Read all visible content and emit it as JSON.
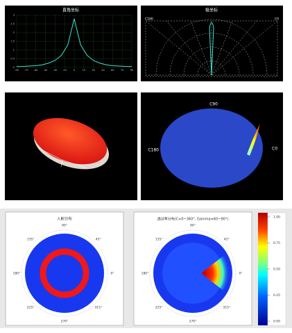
{
  "chart_data": {
    "type": "line",
    "title": "直角坐标",
    "x": [
      -90,
      -80,
      -70,
      -60,
      -50,
      -40,
      -30,
      -20,
      -10,
      0,
      10,
      20,
      30,
      40,
      50,
      60,
      70,
      80,
      90
    ],
    "series": [
      {
        "color": "#40e0d0",
        "values": [
          0.05,
          0.06,
          0.08,
          0.1,
          0.15,
          0.25,
          0.4,
          0.7,
          1.3,
          2.8,
          1.3,
          0.7,
          0.4,
          0.25,
          0.15,
          0.1,
          0.08,
          0.06,
          0.05
        ]
      }
    ],
    "xlim": [
      -90,
      90
    ],
    "xticks": [
      -90,
      -75,
      -60,
      -45,
      -30,
      -15,
      0,
      15,
      30,
      45,
      60,
      75,
      90
    ],
    "ylim": [
      0,
      3
    ],
    "yticks": [
      0,
      0.5,
      1,
      1.5,
      2,
      2.5,
      3
    ],
    "grid": true
  },
  "polar_panel": {
    "title": "极坐标",
    "left_label": "C180",
    "right_label": "C0"
  },
  "ellipse_panel": {
    "top": "C90",
    "left": "C180",
    "right": "C0"
  },
  "incident": {
    "title": "入射分布",
    "angles": [
      "90°",
      "45°",
      "0°",
      "315°",
      "270°",
      "225°",
      "180°",
      "135°"
    ]
  },
  "transmission": {
    "title": "透过率分布(C=0~360°, Gamma=60~90°)",
    "angles": [
      "90°",
      "45°",
      "0°",
      "315°",
      "270°",
      "225°",
      "180°",
      "135°"
    ]
  },
  "colorbar": {
    "clim": [
      0,
      1
    ],
    "ticks": [
      {
        "value": 1,
        "label": "1.00"
      },
      {
        "value": 0.75,
        "label": "0.75"
      },
      {
        "value": 0.5,
        "label": "0.50"
      },
      {
        "value": 0.25,
        "label": "0.25"
      },
      {
        "value": 0,
        "label": "0.00"
      }
    ]
  }
}
